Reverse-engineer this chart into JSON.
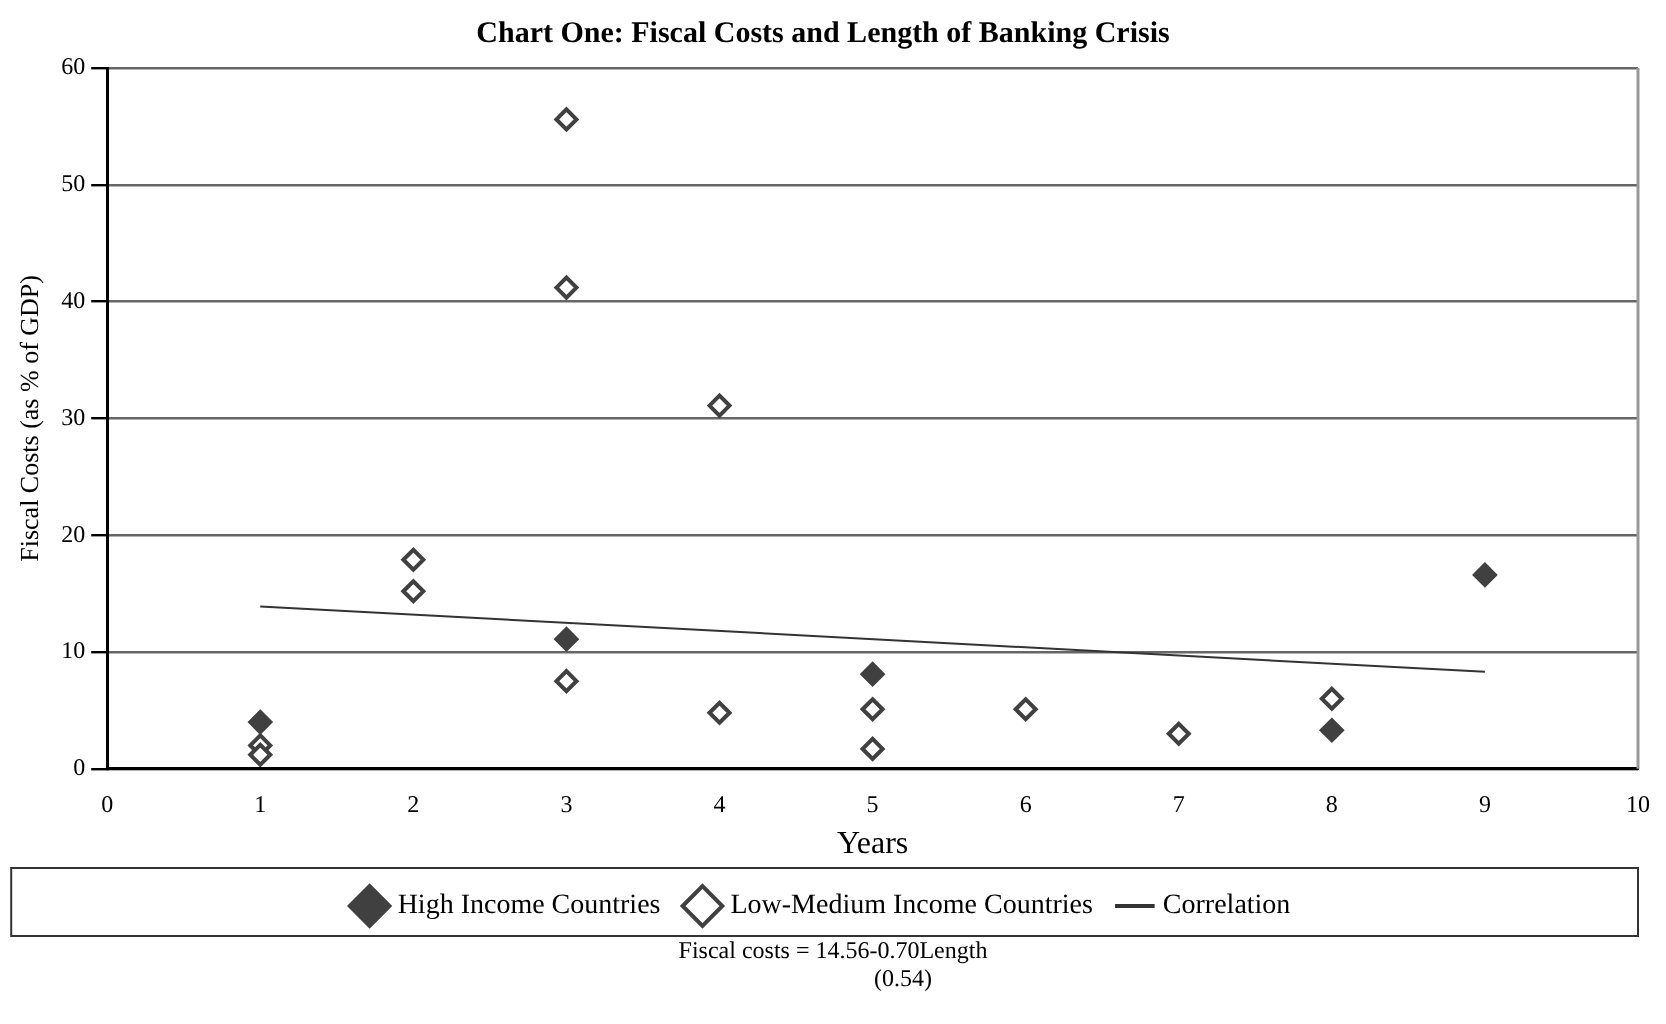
{
  "chart_data": {
    "type": "scatter",
    "title": "Chart One: Fiscal Costs and Length of Banking Crisis",
    "xlabel": "Years",
    "ylabel": "Fiscal Costs (as % of GDP)",
    "xlim": [
      0,
      10
    ],
    "xticks": [
      0,
      1,
      2,
      3,
      4,
      5,
      6,
      7,
      8,
      9,
      10
    ],
    "ylim": [
      0,
      60
    ],
    "yticks": [
      0,
      10,
      20,
      30,
      40,
      50,
      60
    ],
    "grid": "y",
    "legend": "bottom",
    "marker": "diamond",
    "series": [
      {
        "name": "High Income Countries",
        "color": "#404040",
        "x": [
          1,
          3,
          5,
          8,
          9
        ],
        "values": [
          4.0,
          11.1,
          8.1,
          3.3,
          16.6
        ]
      },
      {
        "name": "Low-Medium Income Countries",
        "color": "#404040",
        "x": [
          1,
          1,
          2,
          2,
          3,
          3,
          3,
          4,
          4,
          5,
          5,
          6,
          7,
          8
        ],
        "values": [
          2.0,
          1.2,
          17.9,
          15.2,
          55.6,
          41.2,
          7.5,
          31.1,
          4.8,
          5.1,
          1.7,
          5.1,
          3.0,
          6.0
        ]
      },
      {
        "name": "Correlation",
        "type": "line",
        "marker": "none",
        "color": "#333333",
        "x": [
          1,
          9
        ],
        "values": [
          13.9,
          8.3
        ]
      }
    ],
    "annotations": [
      "Fiscal costs = 14.56-0.70Length",
      "(0.54)"
    ]
  }
}
